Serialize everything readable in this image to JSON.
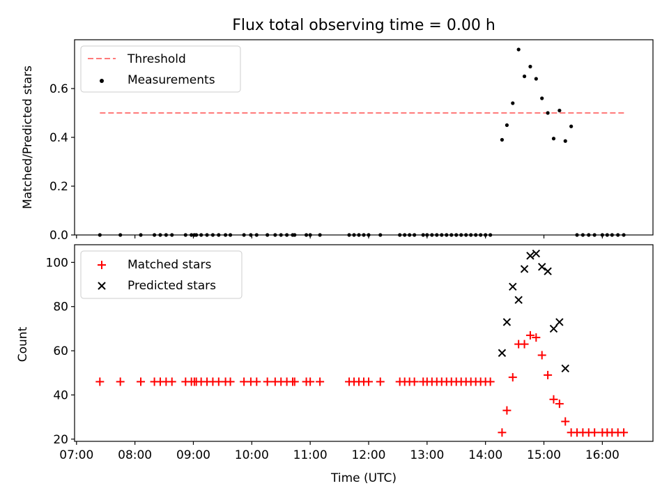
{
  "figure": {
    "title": "Flux total observing time = 0.00 h"
  },
  "chart_data": [
    {
      "type": "scatter",
      "panel": "top",
      "ylabel": "Matched/Predicted stars",
      "xlabel": "",
      "xlim": [
        "06:58",
        "16:52"
      ],
      "ylim": [
        0.0,
        0.8
      ],
      "yticks": [
        0.0,
        0.2,
        0.4,
        0.6
      ],
      "ytick_labels": [
        "0.0",
        "0.2",
        "0.4",
        "0.6"
      ],
      "xticks": [
        "07:00",
        "08:00",
        "09:00",
        "10:00",
        "11:00",
        "12:00",
        "13:00",
        "14:00",
        "15:00",
        "16:00"
      ],
      "grid": false,
      "legend_position": "top-left",
      "series": [
        {
          "name": "Threshold",
          "kind": "line",
          "style": "dashed",
          "color": "#ff7a7a",
          "x": [
            "07:24",
            "16:25"
          ],
          "y": [
            0.5,
            0.5
          ]
        },
        {
          "name": "Measurements",
          "kind": "scatter",
          "marker": "dot",
          "color": "#000000",
          "x": [
            "07:24",
            "07:45",
            "08:06",
            "08:20",
            "08:26",
            "08:32",
            "08:38",
            "08:52",
            "08:58",
            "09:01",
            "09:03",
            "09:08",
            "09:14",
            "09:20",
            "09:26",
            "09:33",
            "09:38",
            "09:52",
            "09:59",
            "10:05",
            "10:16",
            "10:24",
            "10:30",
            "10:36",
            "10:42",
            "10:44",
            "10:56",
            "11:00",
            "11:10",
            "11:40",
            "11:45",
            "11:50",
            "11:55",
            "12:00",
            "12:12",
            "12:32",
            "12:37",
            "12:42",
            "12:47",
            "12:56",
            "13:00",
            "13:05",
            "13:10",
            "13:15",
            "13:20",
            "13:25",
            "13:30",
            "13:35",
            "13:40",
            "13:45",
            "13:50",
            "13:55",
            "14:00",
            "14:05",
            "14:17",
            "14:22",
            "14:28",
            "14:34",
            "14:40",
            "14:46",
            "14:52",
            "14:58",
            "15:04",
            "15:10",
            "15:16",
            "15:22",
            "15:28",
            "15:34",
            "15:40",
            "15:46",
            "15:52",
            "16:00",
            "16:05",
            "16:10",
            "16:16",
            "16:22"
          ],
          "y": [
            0,
            0,
            0,
            0,
            0,
            0,
            0,
            0,
            0,
            0,
            0,
            0,
            0,
            0,
            0,
            0,
            0,
            0,
            0,
            0,
            0,
            0,
            0,
            0,
            0,
            0,
            0,
            0,
            0,
            0,
            0,
            0,
            0,
            0,
            0,
            0,
            0,
            0,
            0,
            0,
            0,
            0,
            0,
            0,
            0,
            0,
            0,
            0,
            0,
            0,
            0,
            0,
            0,
            0,
            0.39,
            0.45,
            0.54,
            0.76,
            0.65,
            0.69,
            0.64,
            0.56,
            0.5,
            0.395,
            0.51,
            0.385,
            0.445,
            0,
            0,
            0,
            0,
            0,
            0,
            0,
            0,
            0
          ]
        }
      ]
    },
    {
      "type": "scatter",
      "panel": "bottom",
      "xlabel": "Time (UTC)",
      "ylabel": "Count",
      "xlim": [
        "06:58",
        "16:52"
      ],
      "ylim": [
        19,
        108
      ],
      "yticks": [
        20,
        40,
        60,
        80,
        100
      ],
      "ytick_labels": [
        "20",
        "40",
        "60",
        "80",
        "100"
      ],
      "xticks": [
        "07:00",
        "08:00",
        "09:00",
        "10:00",
        "11:00",
        "12:00",
        "13:00",
        "14:00",
        "15:00",
        "16:00"
      ],
      "xtick_labels": [
        "07:00",
        "08:00",
        "09:00",
        "10:00",
        "11:00",
        "12:00",
        "13:00",
        "14:00",
        "15:00",
        "16:00"
      ],
      "grid": false,
      "legend_position": "top-left",
      "series": [
        {
          "name": "Matched stars",
          "marker": "plus",
          "color": "#ff0000",
          "x": [
            "07:24",
            "07:45",
            "08:06",
            "08:20",
            "08:26",
            "08:32",
            "08:38",
            "08:52",
            "08:58",
            "09:01",
            "09:03",
            "09:08",
            "09:14",
            "09:20",
            "09:26",
            "09:33",
            "09:38",
            "09:52",
            "09:59",
            "10:05",
            "10:16",
            "10:24",
            "10:30",
            "10:36",
            "10:42",
            "10:44",
            "10:56",
            "11:00",
            "11:10",
            "11:40",
            "11:45",
            "11:50",
            "11:55",
            "12:00",
            "12:12",
            "12:32",
            "12:37",
            "12:42",
            "12:47",
            "12:56",
            "13:00",
            "13:05",
            "13:10",
            "13:15",
            "13:20",
            "13:25",
            "13:30",
            "13:35",
            "13:40",
            "13:45",
            "13:50",
            "13:55",
            "14:00",
            "14:05",
            "14:17",
            "14:22",
            "14:28",
            "14:34",
            "14:40",
            "14:46",
            "14:52",
            "14:58",
            "15:04",
            "15:10",
            "15:16",
            "15:22",
            "15:28",
            "15:34",
            "15:40",
            "15:46",
            "15:52",
            "16:00",
            "16:05",
            "16:10",
            "16:16",
            "16:22"
          ],
          "y": [
            46,
            46,
            46,
            46,
            46,
            46,
            46,
            46,
            46,
            46,
            46,
            46,
            46,
            46,
            46,
            46,
            46,
            46,
            46,
            46,
            46,
            46,
            46,
            46,
            46,
            46,
            46,
            46,
            46,
            46,
            46,
            46,
            46,
            46,
            46,
            46,
            46,
            46,
            46,
            46,
            46,
            46,
            46,
            46,
            46,
            46,
            46,
            46,
            46,
            46,
            46,
            46,
            46,
            46,
            23,
            33,
            48,
            63,
            63,
            67,
            66,
            58,
            49,
            38,
            36,
            28,
            23,
            23,
            23,
            23,
            23,
            23,
            23,
            23,
            23,
            23
          ]
        },
        {
          "name": "Predicted stars",
          "marker": "x",
          "color": "#000000",
          "x": [
            "14:17",
            "14:22",
            "14:28",
            "14:34",
            "14:40",
            "14:46",
            "14:52",
            "14:58",
            "15:04",
            "15:10",
            "15:16",
            "15:22"
          ],
          "y": [
            59,
            73,
            89,
            83,
            97,
            103,
            104,
            98,
            96,
            70,
            73,
            52
          ]
        }
      ]
    }
  ]
}
